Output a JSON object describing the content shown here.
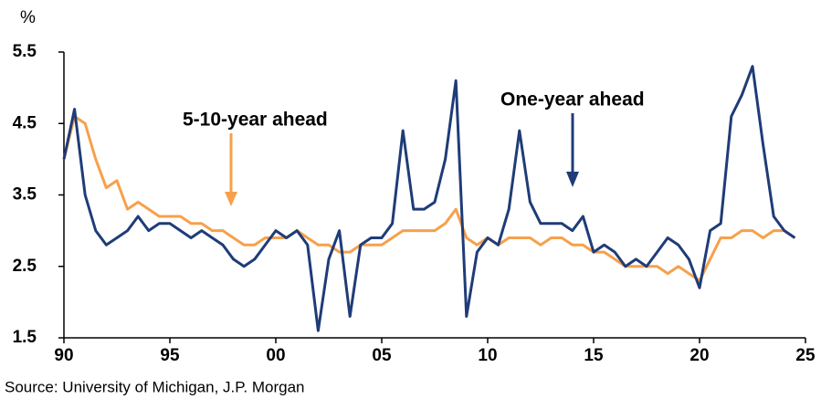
{
  "chart_data": {
    "type": "line",
    "y_unit_label": "%",
    "source": "Source: University of Michigan, J.P. Morgan",
    "annotations": [
      "5-10-year ahead",
      "One-year ahead"
    ],
    "x": [
      1990,
      1990.5,
      1991,
      1991.5,
      1992,
      1992.5,
      1993,
      1993.5,
      1994,
      1994.5,
      1995,
      1995.5,
      1996,
      1996.5,
      1997,
      1997.5,
      1998,
      1998.5,
      1999,
      1999.5,
      2000,
      2000.5,
      2001,
      2001.5,
      2002,
      2002.5,
      2003,
      2003.5,
      2004,
      2004.5,
      2005,
      2005.5,
      2006,
      2006.5,
      2007,
      2007.5,
      2008,
      2008.5,
      2009,
      2009.5,
      2010,
      2010.5,
      2011,
      2011.5,
      2012,
      2012.5,
      2013,
      2013.5,
      2014,
      2014.5,
      2015,
      2015.5,
      2016,
      2016.5,
      2017,
      2017.5,
      2018,
      2018.5,
      2019,
      2019.5,
      2020,
      2020.5,
      2021,
      2021.5,
      2022,
      2022.5,
      2023,
      2023.5,
      2024,
      2024.5
    ],
    "series": [
      {
        "name": "One-year ahead",
        "color": "#1f3c78",
        "values": [
          4.0,
          4.7,
          3.5,
          3.0,
          2.8,
          2.9,
          3.0,
          3.2,
          3.0,
          3.1,
          3.1,
          3.0,
          2.9,
          3.0,
          2.9,
          2.8,
          2.6,
          2.5,
          2.6,
          2.8,
          3.0,
          2.9,
          3.0,
          2.8,
          1.6,
          2.6,
          3.0,
          1.8,
          2.8,
          2.9,
          2.9,
          3.1,
          4.4,
          3.3,
          3.3,
          3.4,
          4.0,
          5.1,
          1.8,
          2.7,
          2.9,
          2.8,
          3.3,
          4.4,
          3.4,
          3.1,
          3.1,
          3.1,
          3.0,
          3.2,
          2.7,
          2.8,
          2.7,
          2.5,
          2.6,
          2.5,
          2.7,
          2.9,
          2.8,
          2.6,
          2.2,
          3.0,
          3.1,
          4.6,
          4.9,
          5.3,
          4.2,
          3.2,
          3.0,
          2.9
        ]
      },
      {
        "name": "5-10-year ahead",
        "color": "#f7a04b",
        "values": [
          4.0,
          4.6,
          4.5,
          4.0,
          3.6,
          3.7,
          3.3,
          3.4,
          3.3,
          3.2,
          3.2,
          3.2,
          3.1,
          3.1,
          3.0,
          3.0,
          2.9,
          2.8,
          2.8,
          2.9,
          2.9,
          2.9,
          3.0,
          2.9,
          2.8,
          2.8,
          2.7,
          2.7,
          2.8,
          2.8,
          2.8,
          2.9,
          3.0,
          3.0,
          3.0,
          3.0,
          3.1,
          3.3,
          2.9,
          2.8,
          2.9,
          2.8,
          2.9,
          2.9,
          2.9,
          2.8,
          2.9,
          2.9,
          2.8,
          2.8,
          2.7,
          2.7,
          2.6,
          2.5,
          2.5,
          2.5,
          2.5,
          2.4,
          2.5,
          2.4,
          2.3,
          2.6,
          2.9,
          2.9,
          3.0,
          3.0,
          2.9,
          3.0,
          3.0,
          2.9
        ]
      }
    ],
    "xlim": [
      1990,
      2025
    ],
    "xticks": [
      {
        "value": 1990,
        "label": "90"
      },
      {
        "value": 1995,
        "label": "95"
      },
      {
        "value": 2000,
        "label": "00"
      },
      {
        "value": 2005,
        "label": "05"
      },
      {
        "value": 2010,
        "label": "10"
      },
      {
        "value": 2015,
        "label": "15"
      },
      {
        "value": 2020,
        "label": "20"
      },
      {
        "value": 2025,
        "label": "25"
      }
    ],
    "ylim": [
      1.5,
      5.5
    ],
    "yticks": [
      1.5,
      2.5,
      3.5,
      4.5,
      5.5
    ],
    "grid": false
  }
}
